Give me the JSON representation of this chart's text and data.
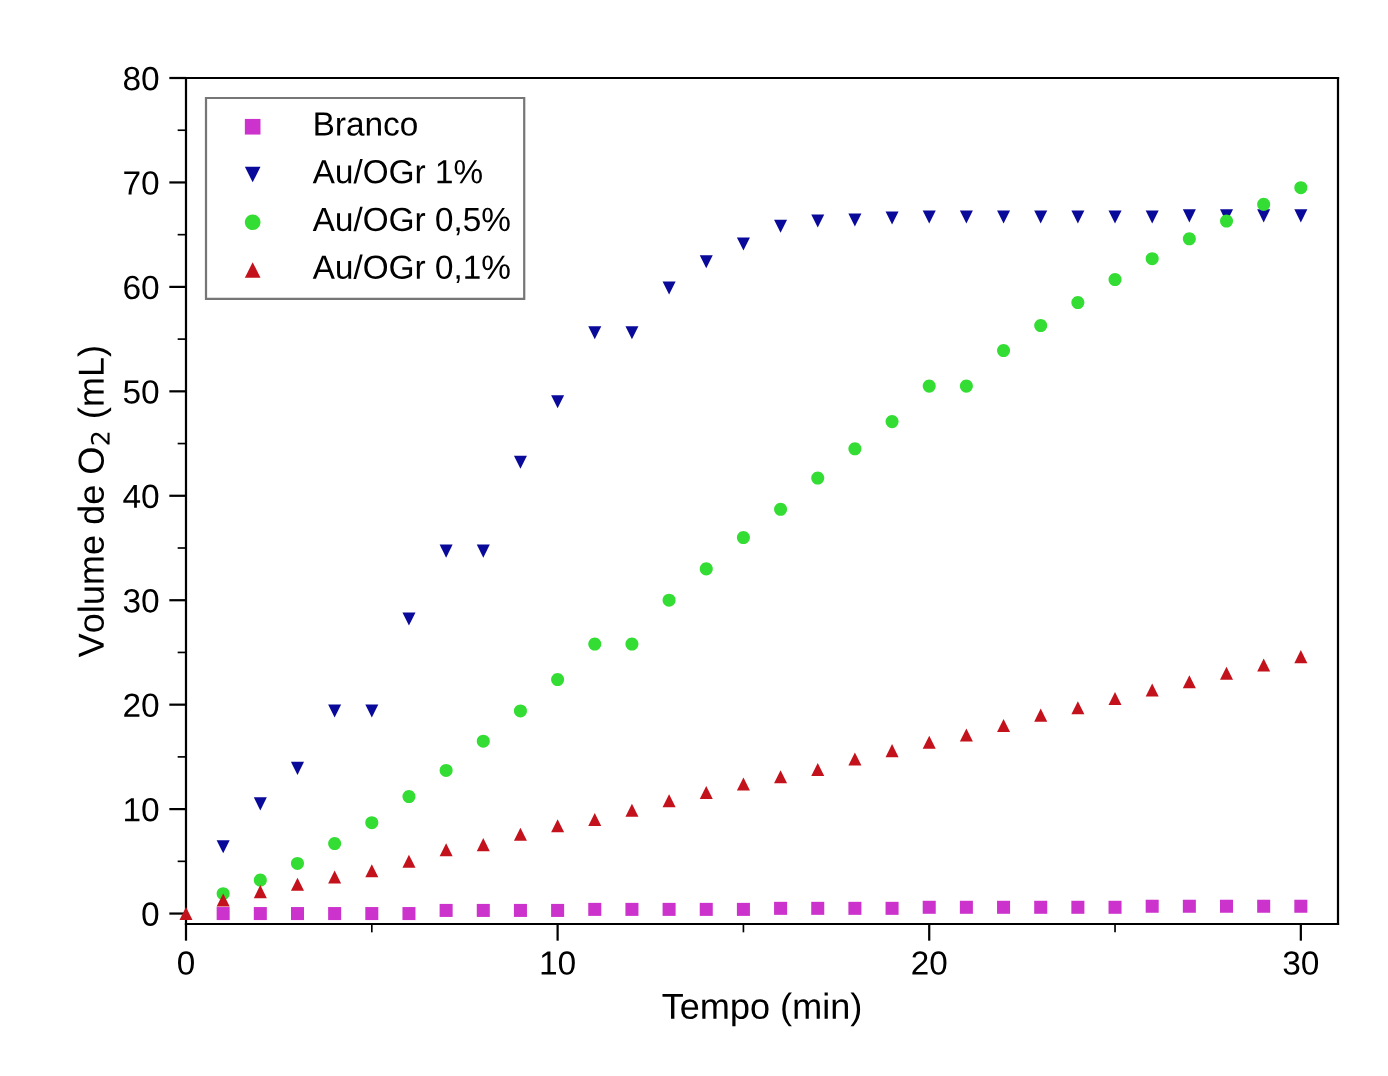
{
  "chart_data": {
    "type": "scatter",
    "xlabel": "Tempo (min)",
    "ylabel": "Volume de O$_{2}$ (mL)",
    "x": [
      0,
      1,
      2,
      3,
      4,
      5,
      6,
      7,
      8,
      9,
      10,
      11,
      12,
      13,
      14,
      15,
      16,
      17,
      18,
      19,
      20,
      21,
      22,
      23,
      24,
      25,
      26,
      27,
      28,
      29,
      30
    ],
    "series": [
      {
        "name": "Branco",
        "color": "#cc33cc",
        "marker": "square",
        "values": [
          null,
          0,
          0,
          0,
          0,
          0,
          0,
          0.3,
          0.3,
          0.3,
          0.3,
          0.4,
          0.4,
          0.4,
          0.4,
          0.4,
          0.5,
          0.5,
          0.5,
          0.5,
          0.6,
          0.6,
          0.6,
          0.6,
          0.6,
          0.6,
          0.7,
          0.7,
          0.7,
          0.7,
          0.7
        ]
      },
      {
        "name": "Au/OGr 1%",
        "color": "#0a0a9a",
        "marker": "triangle_down",
        "values": [
          null,
          6.4,
          10.5,
          13.9,
          19.4,
          19.4,
          28.2,
          34.7,
          34.7,
          43.2,
          49.0,
          55.6,
          55.6,
          59.9,
          62.4,
          64.1,
          65.8,
          66.3,
          66.4,
          66.6,
          66.7,
          66.7,
          66.7,
          66.7,
          66.7,
          66.7,
          66.7,
          66.8,
          66.8,
          66.8,
          66.8
        ]
      },
      {
        "name": "Au/OGr 0,5%",
        "color": "#33dd33",
        "marker": "circle",
        "values": [
          null,
          1.9,
          3.2,
          4.8,
          6.7,
          8.7,
          11.2,
          13.7,
          16.5,
          19.4,
          22.4,
          25.8,
          25.8,
          30.0,
          33.0,
          36.0,
          38.7,
          41.7,
          44.5,
          47.1,
          50.5,
          50.5,
          53.9,
          56.3,
          58.5,
          60.7,
          62.7,
          64.6,
          66.3,
          67.9,
          69.5
        ]
      },
      {
        "name": "Au/OGr 0,1%",
        "color": "#c4121c",
        "marker": "triangle",
        "values": [
          0,
          1.3,
          2.1,
          2.8,
          3.5,
          4.1,
          5.0,
          6.1,
          6.6,
          7.6,
          8.4,
          9.0,
          9.9,
          10.8,
          11.6,
          12.4,
          13.1,
          13.8,
          14.8,
          15.6,
          16.4,
          17.1,
          18.0,
          19.0,
          19.7,
          20.6,
          21.4,
          22.2,
          23.0,
          23.8,
          24.6
        ]
      }
    ],
    "xlim": [
      0,
      31
    ],
    "xticks": [
      0,
      10,
      20,
      30
    ],
    "ylim": [
      -1,
      80
    ],
    "yticks": [
      0,
      10,
      20,
      30,
      40,
      50,
      60,
      70,
      80
    ],
    "grid": false,
    "legend": "top left"
  }
}
